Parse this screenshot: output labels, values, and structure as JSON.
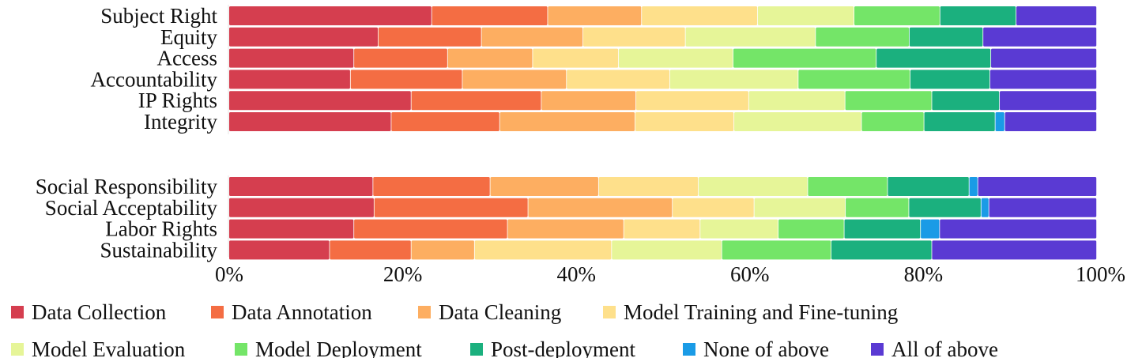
{
  "chart_data": {
    "type": "bar",
    "orientation": "horizontal",
    "stacked": true,
    "normalized": true,
    "xlim": [
      0,
      100
    ],
    "x_ticks": [
      "0%",
      "20%",
      "40%",
      "60%",
      "80%",
      "100%"
    ],
    "groups": [
      {
        "categories": [
          "Subject Right",
          "Equity",
          "Access",
          "Accountability",
          "IP Rights",
          "Integrity"
        ]
      },
      {
        "categories": [
          "Social Responsibility",
          "Social Acceptability",
          "Labor Rights",
          "Sustainability"
        ]
      }
    ],
    "series": [
      {
        "name": "Data Collection",
        "color": "#d53e4f",
        "values": [
          22.9,
          17.2,
          14.4,
          14.0,
          21.0,
          18.7,
          16.6,
          16.7,
          14.4,
          11.6
        ]
      },
      {
        "name": "Data Annotation",
        "color": "#f46d43",
        "values": [
          13.1,
          11.9,
          10.8,
          12.9,
          15.0,
          12.5,
          13.5,
          17.7,
          17.7,
          9.4
        ]
      },
      {
        "name": "Data Cleaning",
        "color": "#fdae61",
        "values": [
          10.6,
          11.7,
          9.8,
          12.0,
          10.9,
          15.6,
          12.5,
          16.6,
          13.4,
          7.3
        ]
      },
      {
        "name": "Model Training and Fine-tuning",
        "color": "#fee08b",
        "values": [
          13.1,
          11.8,
          9.9,
          11.9,
          13.0,
          11.4,
          11.5,
          9.4,
          8.8,
          15.8
        ]
      },
      {
        "name": "Model Evaluation",
        "color": "#e6f598",
        "values": [
          10.9,
          15.0,
          13.2,
          14.8,
          11.1,
          14.7,
          12.6,
          10.5,
          9.0,
          12.7
        ]
      },
      {
        "name": "Model Deployment",
        "color": "#74e568",
        "values": [
          9.7,
          10.8,
          16.5,
          12.9,
          10.0,
          7.2,
          9.2,
          7.3,
          7.6,
          12.6
        ]
      },
      {
        "name": "Post-deployment",
        "color": "#1bb07e",
        "values": [
          8.6,
          8.5,
          13.2,
          9.2,
          7.8,
          8.2,
          9.4,
          8.3,
          8.8,
          11.6
        ]
      },
      {
        "name": "None of above",
        "color": "#1a9be6",
        "values": [
          0.0,
          0.0,
          0.0,
          0.0,
          0.0,
          1.1,
          1.0,
          0.9,
          2.2,
          0.0
        ]
      },
      {
        "name": "All of above",
        "color": "#5a3ad3",
        "values": [
          9.1,
          13.1,
          12.2,
          12.3,
          11.2,
          10.6,
          13.7,
          12.4,
          18.1,
          19.0
        ]
      }
    ],
    "legend_position": "bottom",
    "grid": false
  }
}
